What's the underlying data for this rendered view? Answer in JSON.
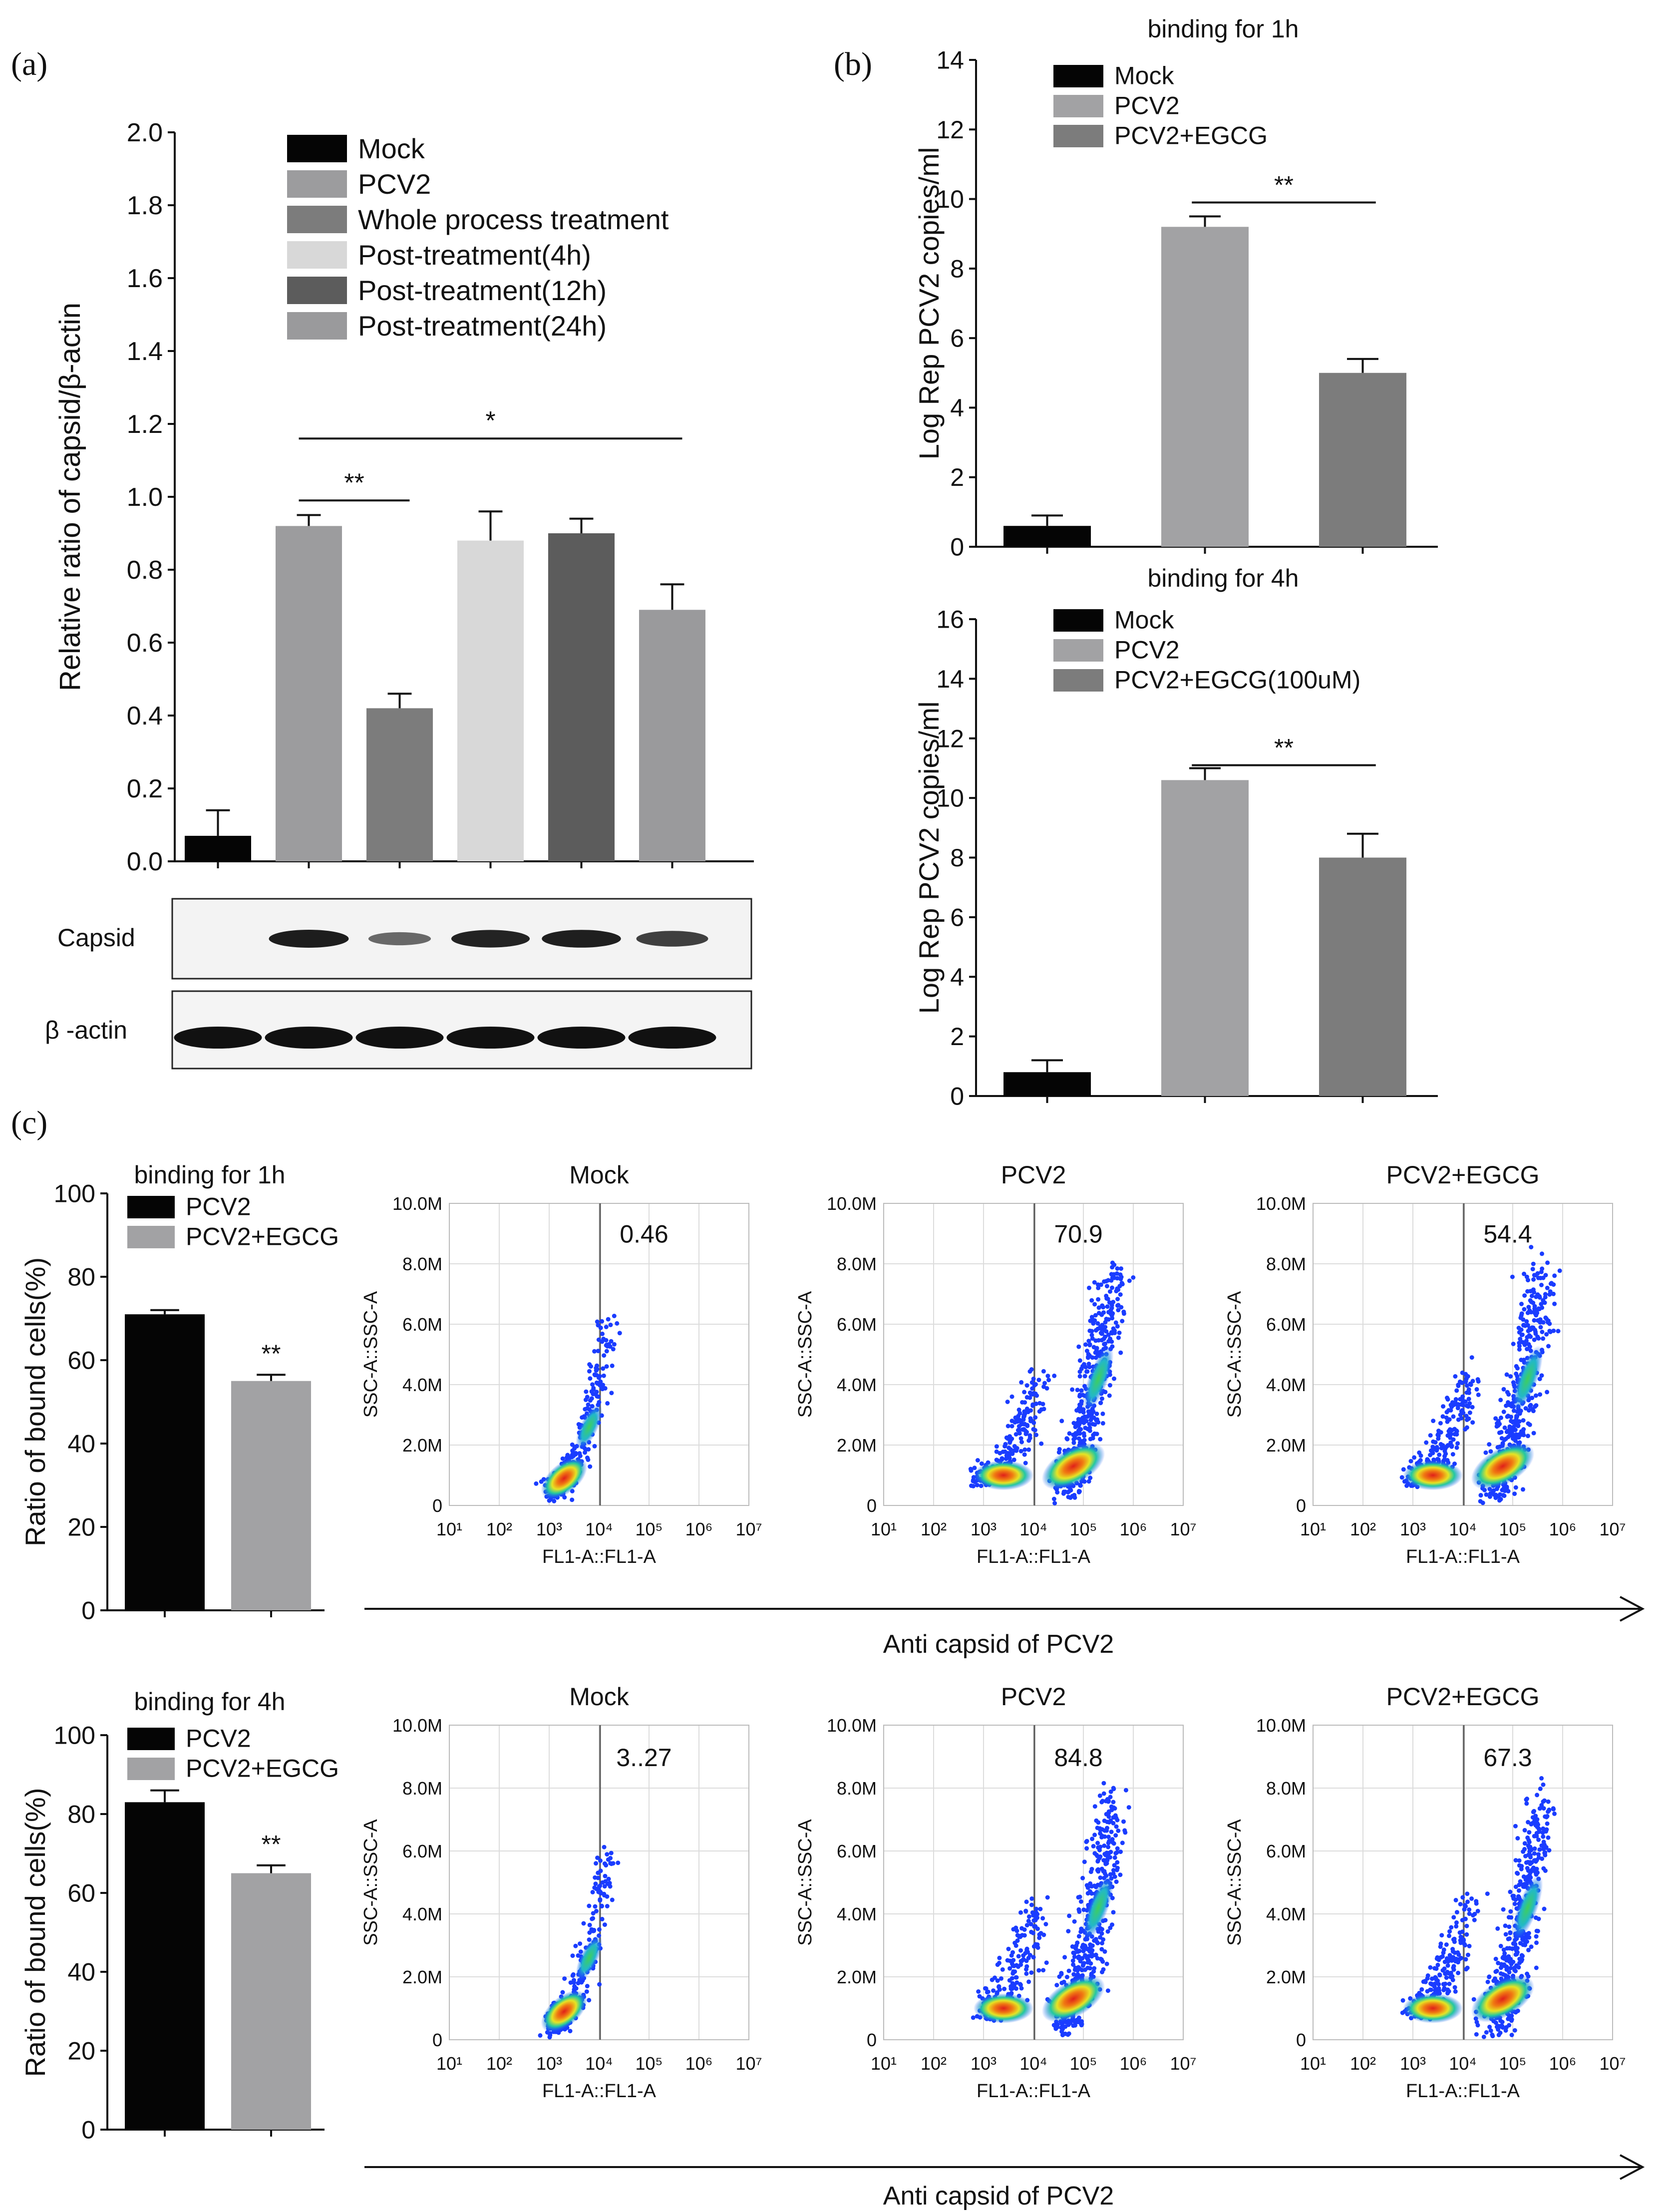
{
  "panel_labels": {
    "a": "(a)",
    "b": "(b)",
    "c": "(c)"
  },
  "chart_data": [
    {
      "id": "panel-a",
      "type": "bar",
      "title": "",
      "xlabel": "",
      "ylabel": "Relative ratio of capsid/β-actin",
      "ylim": [
        0,
        2.0
      ],
      "yticks": [
        "0.0",
        "0.2",
        "0.4",
        "0.6",
        "0.8",
        "1.0",
        "1.2",
        "1.4",
        "1.6",
        "1.8",
        "2.0"
      ],
      "legend": [
        "Mock",
        "PCV2",
        "Whole process treatment",
        "Post-treatment(4h)",
        "Post-treatment(12h)",
        "Post-treatment(24h)"
      ],
      "values": [
        0.07,
        0.92,
        0.42,
        0.88,
        0.9,
        0.69
      ],
      "errors": [
        0.07,
        0.03,
        0.04,
        0.08,
        0.04,
        0.07
      ],
      "colors": [
        "#050505",
        "#9c9c9e",
        "#7c7c7c",
        "#d8d8d8",
        "#5c5c5c",
        "#9a9a9c"
      ],
      "annotations": [
        {
          "label": "**",
          "from": 1,
          "to": 2,
          "y": 0.99
        },
        {
          "label": "*",
          "from": 1,
          "to": 5,
          "y": 1.16
        }
      ],
      "blot": {
        "rows": [
          "Capsid",
          "β -actin"
        ]
      }
    },
    {
      "id": "panel-b1",
      "type": "bar",
      "title": "binding for 1h",
      "ylabel": "Log Rep PCV2 copies/ml",
      "ylim": [
        0,
        14
      ],
      "yticks": [
        "0",
        "2",
        "4",
        "6",
        "8",
        "10",
        "12",
        "14"
      ],
      "legend": [
        "Mock",
        "PCV2",
        "PCV2+EGCG"
      ],
      "values": [
        0.6,
        9.2,
        5.0
      ],
      "errors": [
        0.3,
        0.3,
        0.4
      ],
      "colors": [
        "#050505",
        "#a2a2a4",
        "#7c7c7c"
      ],
      "annotations": [
        {
          "label": "**",
          "from": 1,
          "to": 2,
          "y": 9.9
        }
      ]
    },
    {
      "id": "panel-b2",
      "type": "bar",
      "title": "binding for 4h",
      "ylabel": "Log Rep PCV2 copies/ml",
      "ylim": [
        0,
        16
      ],
      "yticks": [
        "0",
        "2",
        "4",
        "6",
        "8",
        "10",
        "12",
        "14",
        "16"
      ],
      "legend": [
        "Mock",
        "PCV2",
        "PCV2+EGCG(100uM)"
      ],
      "values": [
        0.8,
        10.6,
        8.0
      ],
      "errors": [
        0.4,
        0.4,
        0.8
      ],
      "colors": [
        "#050505",
        "#a2a2a4",
        "#7c7c7c"
      ],
      "annotations": [
        {
          "label": "**",
          "from": 1,
          "to": 2,
          "y": 11.1
        }
      ]
    },
    {
      "id": "panel-c1",
      "type": "bar",
      "title": "binding for 1h",
      "ylabel": "Ratio of bound cells(%)",
      "ylim": [
        0,
        100
      ],
      "yticks": [
        "0",
        "20",
        "40",
        "60",
        "80",
        "100"
      ],
      "legend": [
        "PCV2",
        "PCV2+EGCG"
      ],
      "values": [
        71,
        55
      ],
      "errors": [
        1,
        1.5
      ],
      "colors": [
        "#050505",
        "#a2a2a4"
      ],
      "annotations": [
        {
          "label": "**",
          "bar": 1
        }
      ]
    },
    {
      "id": "panel-c2",
      "type": "bar",
      "title": "binding for 4h",
      "ylabel": "Ratio of bound cells(%)",
      "ylim": [
        0,
        100
      ],
      "yticks": [
        "0",
        "20",
        "40",
        "60",
        "80",
        "100"
      ],
      "legend": [
        "PCV2",
        "PCV2+EGCG"
      ],
      "values": [
        83,
        65
      ],
      "errors": [
        3,
        2
      ],
      "colors": [
        "#050505",
        "#a2a2a4"
      ],
      "annotations": [
        {
          "label": "**",
          "bar": 1
        }
      ]
    },
    {
      "id": "flow-plots",
      "type": "scatter",
      "xlabel": "FL1-A::FL1-A",
      "ylabel": "SSC-A::SSC-A",
      "xticks": [
        "10¹",
        "10²",
        "10³",
        "10⁴",
        "10⁵",
        "10⁶",
        "10⁷"
      ],
      "yticks": [
        "0",
        "2.0M",
        "4.0M",
        "6.0M",
        "8.0M",
        "10.0M"
      ],
      "plots": [
        {
          "title": "Mock",
          "value": "0.46"
        },
        {
          "title": "PCV2",
          "value": "70.9"
        },
        {
          "title": "PCV2+EGCG",
          "value": "54.4"
        },
        {
          "title": "Mock",
          "value": "3..27"
        },
        {
          "title": "PCV2",
          "value": "84.8"
        },
        {
          "title": "PCV2+EGCG",
          "value": "67.3"
        }
      ],
      "arrow_label": "Anti capsid of PCV2"
    }
  ]
}
